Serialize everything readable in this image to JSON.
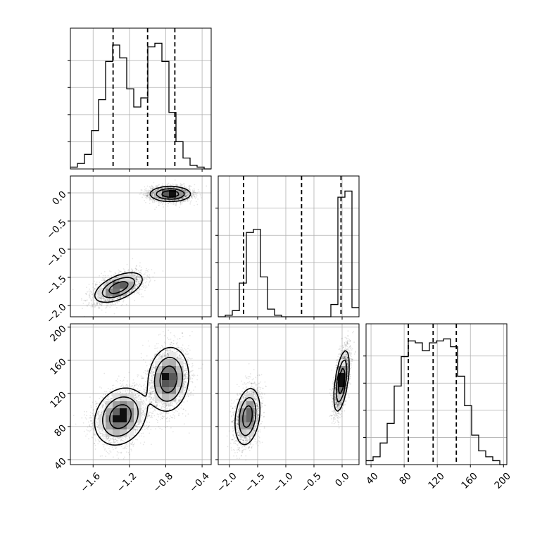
{
  "chart_data": {
    "type": "corner",
    "grid": true,
    "parameters": [
      {
        "range": [
          -1.85,
          -0.3
        ],
        "ticks": [
          -1.6,
          -1.2,
          -0.8,
          -0.4
        ],
        "tick_labels": [
          "−1.6",
          "−1.2",
          "−0.8",
          "−0.4"
        ],
        "quantiles": [
          -1.38,
          -1.0,
          -0.7
        ],
        "hist": {
          "edges": [
            -1.85,
            -1.7725,
            -1.695,
            -1.6175,
            -1.54,
            -1.4625,
            -1.385,
            -1.3075,
            -1.23,
            -1.1525,
            -1.075,
            -0.9975,
            -0.92,
            -0.8425,
            -0.765,
            -0.6875,
            -0.61,
            -0.5325,
            -0.455,
            -0.3775,
            -0.3
          ],
          "counts": [
            1,
            3,
            8,
            21,
            38,
            59,
            68,
            61,
            44,
            34,
            39,
            67,
            69,
            59,
            31,
            15,
            6,
            2,
            1,
            0
          ]
        }
      },
      {
        "range": [
          -2.2,
          0.3
        ],
        "ticks": [
          -2.0,
          -1.5,
          -1.0,
          -0.5,
          0.0
        ],
        "tick_labels": [
          "−2.0",
          "−1.5",
          "−1.0",
          "−0.5",
          "0.0"
        ],
        "quantiles": [
          -1.75,
          -0.72,
          -0.02
        ],
        "hist": {
          "edges": [
            -2.2,
            -2.075,
            -1.95,
            -1.825,
            -1.7,
            -1.575,
            -1.45,
            -1.325,
            -1.2,
            -1.075,
            -0.95,
            -0.825,
            -0.7,
            -0.575,
            -0.45,
            -0.325,
            -0.2,
            -0.075,
            0.05,
            0.175,
            0.3
          ],
          "counts": [
            0,
            1,
            4,
            22,
            55,
            57,
            26,
            5,
            1,
            0,
            0,
            0,
            0,
            0,
            0,
            0,
            8,
            78,
            82,
            6
          ]
        }
      },
      {
        "range": [
          34,
          204
        ],
        "ticks": [
          40,
          80,
          120,
          160,
          200
        ],
        "tick_labels": [
          "40",
          "80",
          "120",
          "160",
          "200"
        ],
        "quantiles": [
          85,
          115,
          143
        ],
        "hist": {
          "edges": [
            34,
            42.5,
            51,
            59.5,
            68,
            76.5,
            85,
            93.5,
            102,
            110.5,
            119,
            127.5,
            136,
            144.5,
            153,
            161.5,
            170,
            178.5,
            187,
            195.5,
            204
          ],
          "counts": [
            2,
            4,
            11,
            21,
            40,
            55,
            63,
            62,
            58,
            62,
            63,
            64,
            60,
            45,
            30,
            15,
            7,
            4,
            2,
            0
          ]
        }
      }
    ],
    "blobs": {
      "1_0": [
        {
          "cx": -1.32,
          "cy": -1.68,
          "sx": 0.13,
          "sy": 0.13,
          "rho": 0.55,
          "w": 1.0
        },
        {
          "cx": -0.75,
          "cy": -0.02,
          "sx": 0.11,
          "sy": 0.065,
          "rho": 0.0,
          "w": 1.05
        }
      ],
      "2_0": [
        {
          "cx": -1.3,
          "cy": 92,
          "sx": 0.14,
          "sy": 17,
          "rho": 0.2,
          "w": 1.0
        },
        {
          "cx": -0.77,
          "cy": 137,
          "sx": 0.11,
          "sy": 19,
          "rho": 0.1,
          "w": 1.0
        }
      ],
      "2_1": [
        {
          "cx": -1.68,
          "cy": 92,
          "sx": 0.11,
          "sy": 17,
          "rho": 0.25,
          "w": 1.0
        },
        {
          "cx": -0.01,
          "cy": 135,
          "sx": 0.065,
          "sy": 18,
          "rho": 0.55,
          "w": 1.1
        }
      ]
    }
  }
}
